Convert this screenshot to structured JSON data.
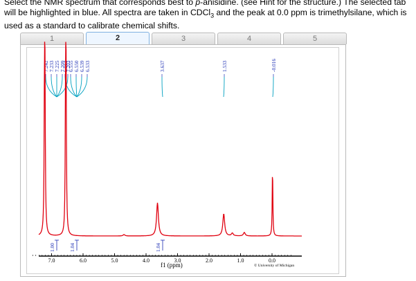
{
  "instructions": {
    "text_before_italic": "Select the NMR spectrum that corresponds best to ",
    "italic_term": "p",
    "text_after_italic": "-anisidine. (see Hint for the structure.) The selected tab will be highlighted in blue. All spectra are taken in CDCl",
    "subscript": "3",
    "text_end": " and the peak at 0.0 ppm is trimethylsilane, which is used as a standard to calibrate chemical shifts."
  },
  "tabs": [
    {
      "label": "1",
      "selected": false
    },
    {
      "label": "2",
      "selected": true
    },
    {
      "label": "3",
      "selected": false
    },
    {
      "label": "4",
      "selected": false
    },
    {
      "label": "5",
      "selected": false
    }
  ],
  "spectrum": {
    "peak_label_groups": [
      {
        "labels": [
          "7.242",
          "7.233",
          "7.225",
          "7.209",
          "7.203"
        ]
      },
      {
        "labels": [
          "6.563",
          "6.555",
          "6.550",
          "6.539",
          "6.533"
        ]
      },
      {
        "labels": [
          "3.637"
        ]
      },
      {
        "labels": [
          "1.533"
        ]
      },
      {
        "labels": [
          "-0.016"
        ]
      }
    ],
    "integrals": [
      "1.00",
      "1.04",
      "1.04"
    ],
    "x_ticks": [
      "7.0",
      "6.0",
      "5.0",
      "4.0",
      "3.0",
      "2.0",
      "1.0",
      "0.0"
    ],
    "xlabel": "f1 (ppm)",
    "credit": "© University of Michigan",
    "colors": {
      "spectrum": "#e0000f",
      "labels": "#1a2cb3",
      "connectors": "#00a0c0"
    }
  }
}
